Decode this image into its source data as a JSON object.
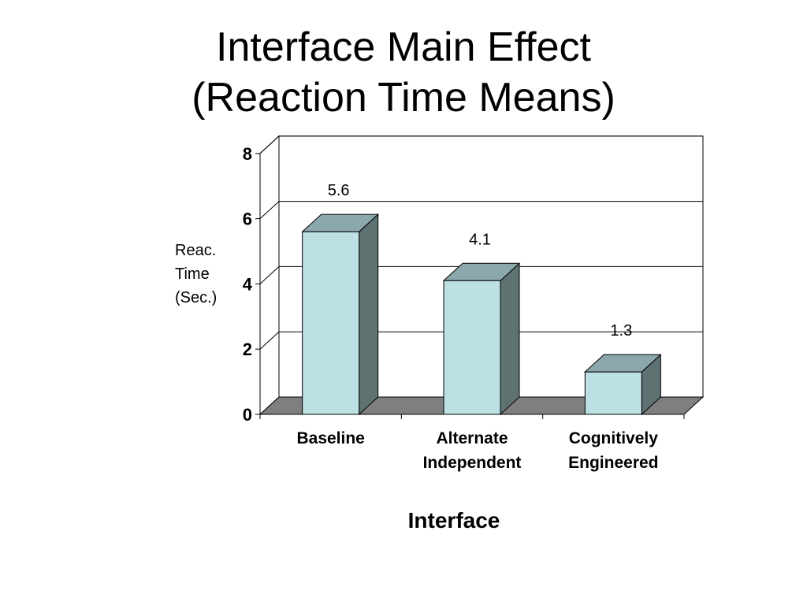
{
  "slide": {
    "title_line1": "Interface Main Effect",
    "title_line2": "(Reaction Time Means)"
  },
  "colors": {
    "bar_front": "#bde0e4",
    "bar_top": "#8ba8ac",
    "bar_side": "#5e7272",
    "floor": "#7f7f7f",
    "gridline": "#000000"
  },
  "chart_data": {
    "type": "bar",
    "three_d": true,
    "categories": [
      "Baseline",
      "Alternate Independent",
      "Cognitively Engineered"
    ],
    "category_lines": [
      [
        "Baseline"
      ],
      [
        "Alternate",
        "Independent"
      ],
      [
        "Cognitively",
        "Engineered"
      ]
    ],
    "values": [
      5.6,
      4.1,
      1.3
    ],
    "data_labels": [
      "5.6",
      "4.1",
      "1.3"
    ],
    "title": "Interface Main Effect (Reaction Time Means)",
    "xlabel": "Interface",
    "ylabel_lines": [
      "Reac.",
      "Time",
      "(Sec.)"
    ],
    "ylim": [
      0,
      8
    ],
    "yticks": [
      0,
      2,
      4,
      6,
      8
    ],
    "grid": true,
    "legend": "none"
  }
}
